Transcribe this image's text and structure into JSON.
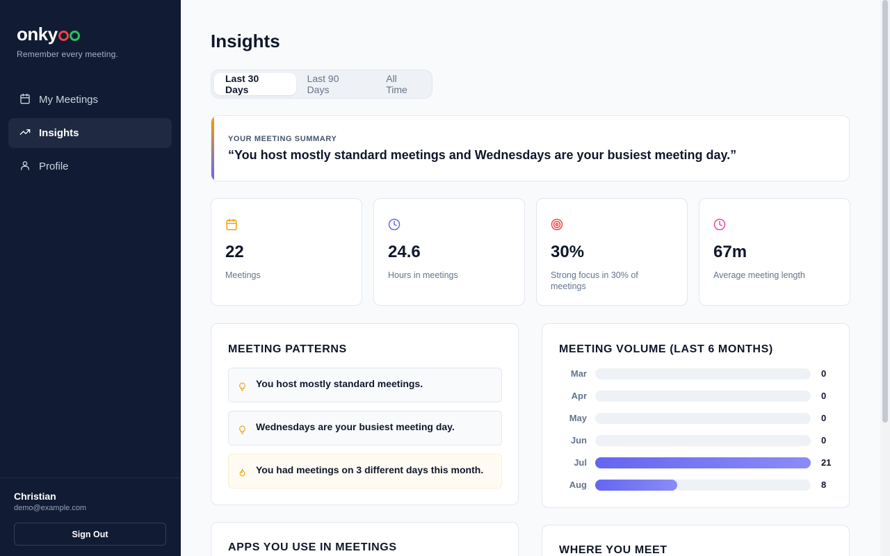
{
  "sidebar": {
    "brand": "onky",
    "tagline": "Remember every meeting.",
    "nav": [
      {
        "label": "My Meetings",
        "icon": "calendar-icon",
        "active": false
      },
      {
        "label": "Insights",
        "icon": "trending-up-icon",
        "active": true
      },
      {
        "label": "Profile",
        "icon": "user-icon",
        "active": false
      }
    ],
    "user": {
      "name": "Christian",
      "email": "demo@example.com"
    },
    "signout_label": "Sign Out"
  },
  "main": {
    "title": "Insights",
    "tabs": [
      {
        "label": "Last 30 Days",
        "active": true
      },
      {
        "label": "Last 90 Days",
        "active": false
      },
      {
        "label": "All Time",
        "active": false
      }
    ],
    "summary": {
      "kicker": "YOUR MEETING SUMMARY",
      "quote": "“You host mostly standard meetings and Wednesdays are your busiest meeting day.”"
    },
    "stats": [
      {
        "value": "22",
        "label": "Meetings",
        "icon": "calendar-icon",
        "color": "#f59e0b"
      },
      {
        "value": "24.6",
        "label": "Hours in meetings",
        "icon": "clock-icon",
        "color": "#6366f1"
      },
      {
        "value": "30%",
        "label": "Strong focus in 30% of meetings",
        "icon": "target-icon",
        "color": "#ef4444"
      },
      {
        "value": "67m",
        "label": "Average meeting length",
        "icon": "clock-icon",
        "color": "#ec4899"
      }
    ],
    "patterns": {
      "title": "MEETING PATTERNS",
      "items": [
        {
          "text": "You host mostly standard meetings.",
          "icon": "lightbulb-icon"
        },
        {
          "text": "Wednesdays are your busiest meeting day.",
          "icon": "lightbulb-icon"
        },
        {
          "text": "You had meetings on 3 different days this month.",
          "icon": "flame-icon"
        }
      ]
    },
    "volume": {
      "title": "MEETING VOLUME (LAST 6 MONTHS)"
    },
    "apps": {
      "title": "APPS YOU USE IN MEETINGS"
    },
    "where": {
      "title": "WHERE YOU MEET"
    }
  },
  "chart_data": {
    "type": "bar",
    "orientation": "horizontal",
    "categories": [
      "Mar",
      "Apr",
      "May",
      "Jun",
      "Jul",
      "Aug"
    ],
    "values": [
      0,
      0,
      0,
      0,
      21,
      8
    ],
    "max": 21
  },
  "colors": {
    "sidebar_bg": "#111b33",
    "accent": "#6366f1",
    "logo_o1": "#ef4444",
    "logo_o2": "#22c55e"
  }
}
